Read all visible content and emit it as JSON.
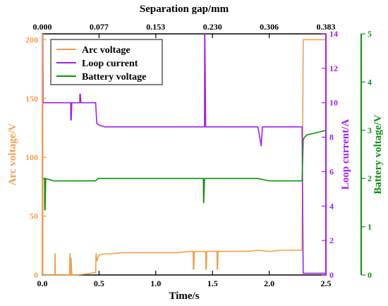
{
  "chart_data": {
    "type": "line",
    "title": "",
    "x_bottom": {
      "label": "Time/s",
      "range": [
        0,
        2.5
      ],
      "ticks": [
        0.0,
        0.5,
        1.0,
        1.5,
        2.0,
        2.5
      ],
      "tick_labels": [
        "0.0",
        "0.5",
        "1.0",
        "1.5",
        "2.0",
        "2.5"
      ]
    },
    "x_top": {
      "label": "Separation gap/mm",
      "tick_labels": [
        "0.000",
        "0.077",
        "0.153",
        "0.230",
        "0.306",
        "0.383"
      ]
    },
    "y_left": {
      "label": "Arc voltage/V",
      "range": [
        0,
        205
      ],
      "ticks": [
        0,
        50,
        100,
        150,
        200
      ],
      "tick_labels": [
        "0",
        "50",
        "100",
        "150",
        "200"
      ],
      "color": "#F0A050"
    },
    "y_right1": {
      "label": "Loop current/A",
      "range": [
        0,
        14
      ],
      "ticks": [
        0,
        2,
        4,
        6,
        8,
        10,
        12,
        14
      ],
      "tick_labels": [
        "0",
        "2",
        "4",
        "6",
        "8",
        "10",
        "12",
        "14"
      ],
      "color": "#A020F0"
    },
    "y_right2": {
      "label": "Battery voltage/V",
      "range": [
        0,
        5
      ],
      "ticks": [
        0,
        1,
        2,
        3,
        4,
        5
      ],
      "tick_labels": [
        "0",
        "1",
        "2",
        "3",
        "4",
        "5"
      ],
      "color": "#109010"
    },
    "legend": {
      "position": "top-left",
      "entries": [
        "Arc voltage",
        "Loop current",
        "Battery voltage"
      ]
    },
    "series": [
      {
        "name": "Arc voltage",
        "axis": "y_left",
        "color": "#F0A050",
        "x": [
          0.0,
          0.003,
          0.005,
          0.01,
          0.05,
          0.11,
          0.112,
          0.113,
          0.115,
          0.12,
          0.2,
          0.24,
          0.243,
          0.245,
          0.25,
          0.254,
          0.26,
          0.3,
          0.4,
          0.45,
          0.47,
          0.473,
          0.476,
          0.48,
          0.5,
          0.55,
          0.6,
          0.7,
          0.8,
          0.9,
          1.0,
          1.1,
          1.2,
          1.3,
          1.33,
          1.331,
          1.335,
          1.34,
          1.4,
          1.44,
          1.441,
          1.445,
          1.45,
          1.5,
          1.54,
          1.541,
          1.545,
          1.55,
          1.6,
          1.7,
          1.8,
          1.9,
          2.0,
          2.1,
          2.2,
          2.28,
          2.29,
          2.3,
          2.31,
          2.5
        ],
        "y": [
          205,
          205,
          0,
          0,
          0,
          0,
          18,
          18,
          0,
          0,
          0,
          0,
          18,
          18,
          0,
          14,
          0,
          0,
          1,
          2,
          2,
          18,
          18,
          12,
          17,
          18,
          18,
          19,
          19,
          19,
          19,
          19,
          19,
          20,
          20,
          5,
          5,
          20,
          20,
          20,
          5,
          5,
          20,
          20,
          20,
          5,
          5,
          20,
          20,
          20,
          20,
          21,
          20,
          21,
          21,
          21,
          21,
          200,
          200,
          200
        ]
      },
      {
        "name": "Loop current",
        "axis": "y_right1",
        "color": "#A020F0",
        "x": [
          0.0,
          0.003,
          0.004,
          0.006,
          0.01,
          0.05,
          0.1,
          0.2,
          0.25,
          0.251,
          0.255,
          0.26,
          0.3,
          0.33,
          0.331,
          0.335,
          0.34,
          0.4,
          0.47,
          0.48,
          0.5,
          0.55,
          0.6,
          0.7,
          0.8,
          0.9,
          1.0,
          1.1,
          1.2,
          1.3,
          1.4,
          1.43,
          1.431,
          1.433,
          1.44,
          1.5,
          1.6,
          1.7,
          1.8,
          1.9,
          1.93,
          1.94,
          2.0,
          2.1,
          2.2,
          2.28,
          2.29,
          2.3,
          2.31,
          2.5
        ],
        "y": [
          0,
          14,
          14,
          10,
          10,
          10,
          10,
          10,
          10,
          9,
          9,
          10,
          10,
          10,
          10.5,
          10.5,
          10,
          10,
          10,
          8.8,
          8.7,
          8.6,
          8.6,
          8.6,
          8.6,
          8.6,
          8.6,
          8.6,
          8.6,
          8.6,
          8.6,
          8.6,
          14,
          14,
          8.6,
          8.6,
          8.6,
          8.6,
          8.6,
          8.6,
          7.5,
          8.6,
          8.6,
          8.6,
          8.6,
          8.6,
          8.6,
          0.1,
          0.1,
          0.1
        ]
      },
      {
        "name": "Battery voltage",
        "axis": "y_right2",
        "color": "#109010",
        "x": [
          0.0,
          0.01,
          0.02,
          0.021,
          0.025,
          0.03,
          0.1,
          0.2,
          0.3,
          0.4,
          0.47,
          0.49,
          0.5,
          0.6,
          0.7,
          0.8,
          0.9,
          1.0,
          1.1,
          1.2,
          1.3,
          1.4,
          1.42,
          1.421,
          1.423,
          1.43,
          1.5,
          1.6,
          1.7,
          1.8,
          1.9,
          2.0,
          2.1,
          2.2,
          2.28,
          2.29,
          2.3,
          2.31,
          2.33,
          2.36,
          2.4,
          2.45,
          2.5
        ],
        "y": [
          2.0,
          2.0,
          2.0,
          1.35,
          1.35,
          2.0,
          1.95,
          1.95,
          1.95,
          1.95,
          1.95,
          2.0,
          2.0,
          2.0,
          2.0,
          2.0,
          2.0,
          2.0,
          2.0,
          2.0,
          2.0,
          2.0,
          2.0,
          1.5,
          1.5,
          2.0,
          2.0,
          2.0,
          2.0,
          2.0,
          2.0,
          1.95,
          1.95,
          1.95,
          1.95,
          1.95,
          2.8,
          2.85,
          2.9,
          2.92,
          2.94,
          2.97,
          3.0
        ]
      }
    ]
  }
}
